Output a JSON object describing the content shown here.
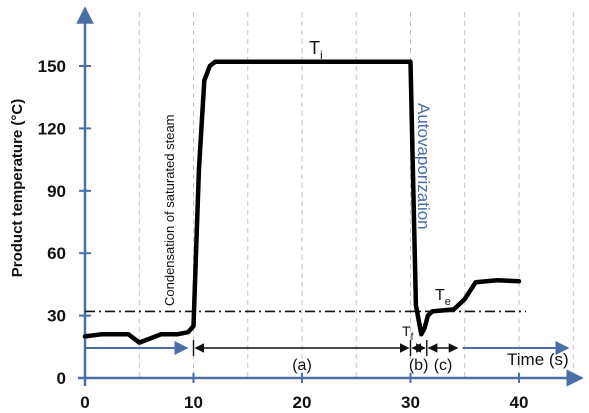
{
  "chart_data": {
    "type": "line",
    "title": "",
    "xlabel": "Time (s)",
    "ylabel": "Product temperature (°C)",
    "xlim": [
      0,
      46
    ],
    "ylim": [
      0,
      165
    ],
    "xticks": [
      0,
      10,
      20,
      30,
      40
    ],
    "yticks": [
      0,
      30,
      60,
      90,
      120,
      150
    ],
    "grid": "vertical dashed",
    "series": [
      {
        "x": [
          0,
          1.5,
          4,
          5,
          6,
          7,
          8.5,
          9.5,
          10,
          10.5,
          11,
          11.5,
          12,
          30,
          30.5,
          31,
          31.3,
          31.6,
          32,
          34,
          35,
          36,
          38,
          40
        ],
        "y": [
          20,
          21,
          21,
          17,
          19,
          21,
          21,
          22,
          25,
          100,
          143,
          150,
          152,
          152,
          35,
          21,
          24,
          30,
          32,
          33,
          38,
          46,
          47,
          46.5
        ]
      }
    ],
    "reference_line": {
      "y": 32
    },
    "segments": [
      {
        "label": "(a)",
        "x": [
          10,
          30
        ]
      },
      {
        "label": "(b)",
        "x": [
          30,
          31.5
        ]
      },
      {
        "label": "(c)",
        "x": [
          31.5,
          34.5
        ]
      }
    ],
    "annotations": {
      "ti": "T",
      "ti_sub": "i",
      "te": "T",
      "te_sub": "e",
      "tf": "T",
      "tf_sub": "f",
      "condensation": "Condensation of saturated steam",
      "autovaporization": "Autovaporization"
    },
    "colors": {
      "line": "#000000",
      "axis": "#4a6fa5",
      "annotation_blue": "#4a6fa5",
      "grid": "#b8c4d6"
    }
  }
}
